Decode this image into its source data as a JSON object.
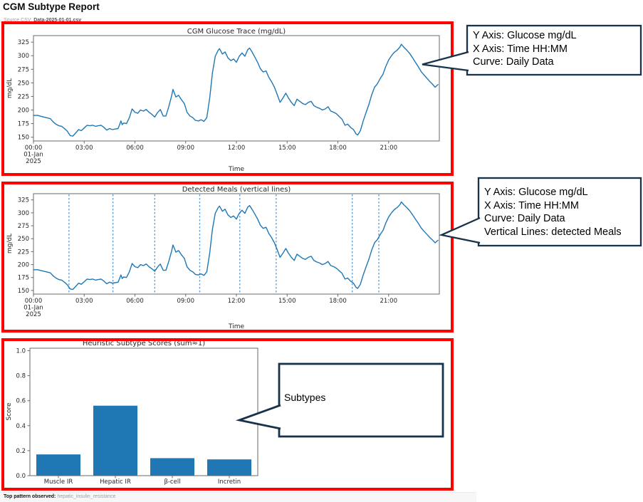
{
  "header": {
    "title": "CGM Subtype Report",
    "source_label": "Source CSV:",
    "source_value": "Data-2025-01-01.csv"
  },
  "footer": {
    "label": "Top pattern observed:",
    "value": "hepatic_insulin_resistance"
  },
  "annotations": {
    "trace": {
      "lines": [
        "Y Axis: Glucose mg/dL",
        "X Axis: Time HH:MM",
        "Curve: Daily Data"
      ]
    },
    "meals": {
      "lines": [
        "Y Axis: Glucose mg/dL",
        "X Axis: Time HH:MM",
        "Curve: Daily Data",
        "Vertical Lines: detected Meals"
      ]
    },
    "subtypes": {
      "lines": [
        "Subtypes"
      ]
    }
  },
  "colors": {
    "panel_border_red": "#ff0000",
    "curve_blue": "#1f77b4",
    "meal_line_blue": "#5b9bd5",
    "bar_blue": "#1f77b4",
    "callout_border": "#17324a",
    "spine_gray": "#6a6a6a",
    "chart_text": "#262626"
  },
  "chart_data": {
    "glucose_series": {
      "name": "Daily Data",
      "x_hours": [
        0,
        0.25,
        0.5,
        0.75,
        1,
        1.17,
        1.33,
        1.5,
        1.67,
        1.83,
        2,
        2.17,
        2.33,
        2.5,
        2.67,
        2.83,
        3,
        3.17,
        3.33,
        3.5,
        3.67,
        3.83,
        4,
        4.17,
        4.33,
        4.5,
        4.67,
        4.83,
        5,
        5.08,
        5.17,
        5.25,
        5.33,
        5.5,
        5.67,
        5.83,
        6,
        6.17,
        6.33,
        6.5,
        6.67,
        6.83,
        7,
        7.17,
        7.33,
        7.5,
        7.67,
        7.83,
        8,
        8.17,
        8.25,
        8.42,
        8.58,
        8.75,
        8.92,
        9.08,
        9.25,
        9.42,
        9.58,
        9.75,
        9.92,
        10.08,
        10.25,
        10.42,
        10.58,
        10.75,
        10.92,
        11,
        11.17,
        11.33,
        11.5,
        11.67,
        11.83,
        12,
        12.17,
        12.33,
        12.5,
        12.67,
        12.78,
        12.92,
        13.08,
        13.25,
        13.42,
        13.58,
        13.75,
        13.92,
        14.08,
        14.25,
        14.42,
        14.58,
        14.75,
        14.92,
        15.08,
        15.25,
        15.42,
        15.58,
        15.75,
        15.92,
        16.08,
        16.25,
        16.42,
        16.58,
        16.75,
        16.92,
        17.08,
        17.25,
        17.42,
        17.58,
        17.75,
        17.92,
        18.08,
        18.25,
        18.42,
        18.58,
        18.75,
        18.92,
        19.08,
        19.17,
        19.33,
        19.5,
        19.67,
        19.83,
        20,
        20.17,
        20.33,
        20.5,
        20.67,
        20.83,
        21,
        21.17,
        21.33,
        21.5,
        21.67,
        21.75,
        21.92,
        22.08,
        22.25,
        22.42,
        22.58,
        22.75,
        22.92,
        23.08,
        23.25,
        23.42,
        23.58,
        23.75,
        23.92
      ],
      "y_mgdl": [
        190,
        190,
        188,
        186,
        184,
        178,
        174,
        171,
        170,
        166,
        161,
        153,
        152,
        158,
        164,
        162,
        167,
        172,
        171,
        172,
        170,
        171,
        172,
        168,
        163,
        166,
        164,
        165,
        166,
        172,
        180,
        173,
        176,
        175,
        186,
        202,
        196,
        194,
        200,
        198,
        201,
        196,
        192,
        187,
        195,
        201,
        189,
        189,
        206,
        226,
        238,
        224,
        227,
        219,
        212,
        196,
        189,
        186,
        181,
        180,
        182,
        179,
        186,
        222,
        268,
        299,
        310,
        313,
        303,
        307,
        296,
        291,
        294,
        288,
        299,
        305,
        299,
        311,
        314,
        307,
        298,
        288,
        276,
        270,
        272,
        260,
        252,
        242,
        228,
        214,
        222,
        231,
        222,
        214,
        208,
        220,
        216,
        212,
        210,
        214,
        216,
        208,
        205,
        203,
        200,
        202,
        206,
        198,
        196,
        193,
        188,
        183,
        172,
        174,
        168,
        164,
        156,
        154,
        162,
        180,
        196,
        210,
        228,
        242,
        248,
        258,
        266,
        280,
        292,
        300,
        306,
        310,
        316,
        321,
        315,
        310,
        304,
        296,
        288,
        280,
        271,
        265,
        259,
        253,
        248,
        242,
        247
      ]
    },
    "charts": [
      {
        "type": "line",
        "title": "CGM Glucose Trace (mg/dL)",
        "xlabel": "Time",
        "ylabel": "mg/dL",
        "x_tick_hours": [
          0,
          3,
          6,
          9,
          12,
          15,
          18,
          21
        ],
        "x_tick_labels": [
          [
            "00:00",
            "01-Jan",
            "2025"
          ],
          "03:00",
          "06:00",
          "09:00",
          "12:00",
          "15:00",
          "18:00",
          "21:00"
        ],
        "y_ticks": [
          150,
          175,
          200,
          225,
          250,
          275,
          300,
          325
        ],
        "ylim": [
          143,
          337
        ],
        "xlim_hours": [
          0,
          24
        ],
        "grid": false,
        "legend": "none"
      },
      {
        "type": "line",
        "title": "Detected Meals (vertical lines)",
        "xlabel": "Time",
        "ylabel": "mg/dL",
        "x_tick_hours": [
          0,
          3,
          6,
          9,
          12,
          15,
          18,
          21
        ],
        "x_tick_labels": [
          [
            "00:00",
            "01-Jan",
            "2025"
          ],
          "03:00",
          "06:00",
          "09:00",
          "12:00",
          "15:00",
          "18:00",
          "21:00"
        ],
        "y_ticks": [
          150,
          175,
          200,
          225,
          250,
          275,
          300,
          325
        ],
        "ylim": [
          143,
          337
        ],
        "xlim_hours": [
          0,
          24
        ],
        "grid": false,
        "legend": "none",
        "meal_hours": [
          2.1,
          4.7,
          7.17,
          9.83,
          12.2,
          14.35,
          18.85,
          20.42
        ]
      },
      {
        "type": "bar",
        "title": "Heuristic Subtype Scores (sum≈1)",
        "ylabel": "Score",
        "categories": [
          "Muscle IR",
          "Hepatic IR",
          "β-cell",
          "Incretin"
        ],
        "values": [
          0.17,
          0.56,
          0.14,
          0.13
        ],
        "y_ticks": [
          "0.0",
          "0.2",
          "0.4",
          "0.6",
          "0.8",
          "1.0"
        ],
        "ylim": [
          0,
          1.02
        ],
        "grid": false,
        "legend": "none"
      }
    ]
  }
}
